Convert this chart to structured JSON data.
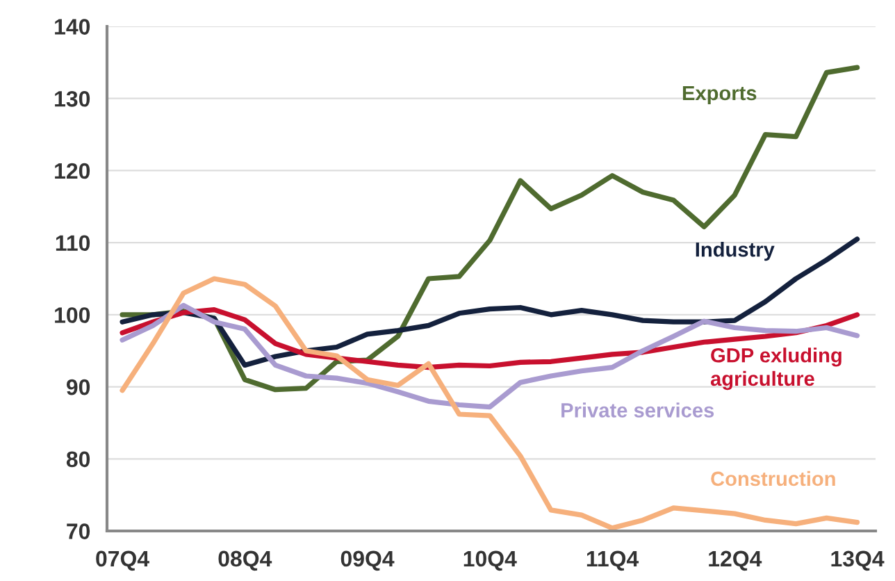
{
  "chart_data": {
    "type": "line",
    "categories": [
      "07Q4",
      null,
      null,
      null,
      "08Q4",
      null,
      null,
      null,
      "09Q4",
      null,
      null,
      null,
      "10Q4",
      null,
      null,
      null,
      "11Q4",
      null,
      null,
      null,
      "12Q4",
      null,
      null,
      null,
      "13Q4"
    ],
    "series": [
      {
        "name": "Exports",
        "color": "#4f6b2f",
        "values": [
          100,
          100,
          100.5,
          99.5,
          91,
          89.6,
          89.8,
          93.5,
          93.7,
          97,
          105,
          105.3,
          110.3,
          118.6,
          114.7,
          116.6,
          119.3,
          117,
          115.9,
          112.2,
          116.6,
          125,
          124.7,
          133.6,
          134.3
        ]
      },
      {
        "name": "Industry",
        "color": "#14213d",
        "values": [
          99,
          100,
          100.3,
          99.5,
          93,
          94.2,
          95,
          95.5,
          97.3,
          97.8,
          98.5,
          100.2,
          100.8,
          101,
          100,
          100.6,
          100,
          99.2,
          99,
          99,
          99.2,
          101.8,
          105,
          107.6,
          110.5
        ]
      },
      {
        "name": "GDP exluding\nagriculture",
        "color": "#c8102e",
        "values": [
          97.5,
          99,
          100.3,
          100.7,
          99.3,
          96,
          94.5,
          94,
          93.5,
          93,
          92.7,
          93,
          92.9,
          93.4,
          93.5,
          94,
          94.5,
          94.8,
          95.5,
          96.2,
          96.6,
          97,
          97.5,
          98.5,
          100
        ]
      },
      {
        "name": "Private services",
        "color": "#a99bd0",
        "values": [
          96.5,
          98.5,
          101.3,
          99,
          98,
          93,
          91.5,
          91.2,
          90.5,
          89.3,
          88,
          87.5,
          87.2,
          90.6,
          91.5,
          92.2,
          92.7,
          95,
          97,
          99.1,
          98.2,
          97.8,
          97.7,
          98.2,
          97.1
        ]
      },
      {
        "name": "Construction",
        "color": "#f6b07c",
        "values": [
          89.5,
          96,
          103,
          105,
          104.2,
          101.2,
          95,
          94.3,
          91,
          90.2,
          93.2,
          86.2,
          86,
          80.4,
          72.9,
          72.2,
          70.4,
          71.5,
          73.2,
          72.8,
          72.4,
          71.5,
          71,
          71.8,
          71.2
        ]
      }
    ],
    "ylim": [
      70,
      140
    ],
    "yticks": [
      70,
      80,
      90,
      100,
      110,
      120,
      130,
      140
    ],
    "grid": "y",
    "legend": false,
    "marker": "none",
    "line_style": "solid"
  }
}
